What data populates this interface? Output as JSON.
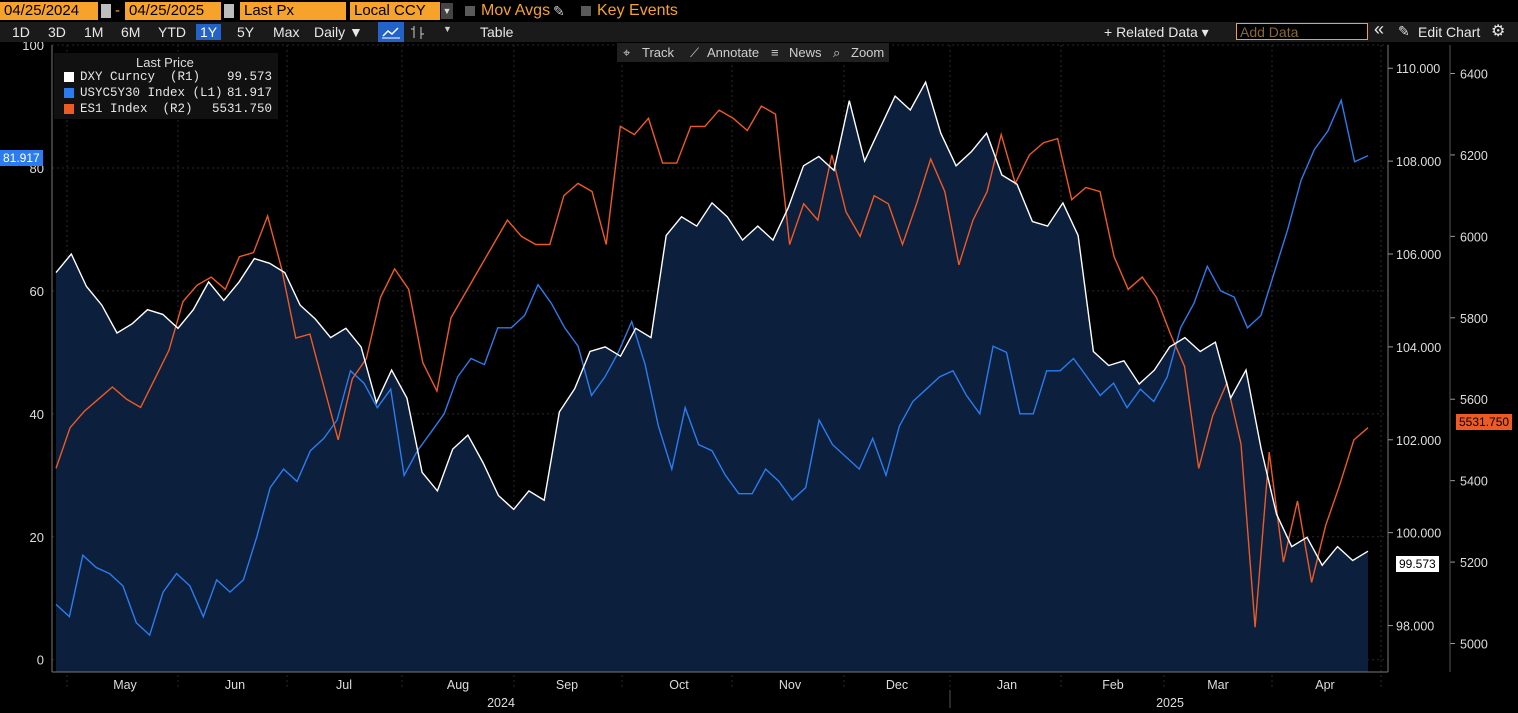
{
  "toolbar": {
    "start_date": "04/25/2024",
    "end_date": "04/25/2025",
    "dash": "-",
    "field": "Last Px",
    "currency": "Local CCY",
    "mov_avgs": "Mov Avgs",
    "key_events": "Key Events",
    "periods": [
      "1D",
      "3D",
      "1M",
      "6M",
      "YTD",
      "1Y",
      "5Y",
      "Max"
    ],
    "active_period": "1Y",
    "frequency": "Daily ▼",
    "table_label": "Table",
    "related_data": "+ Related Data ▾",
    "add_data_placeholder": "Add Data",
    "collapse": "«",
    "edit_chart": "Edit Chart",
    "gear": "⚙",
    "tools": [
      "Track",
      "Annotate",
      "News",
      "Zoom"
    ]
  },
  "legend": {
    "title": "Last Price",
    "rows": [
      {
        "label": "DXY Curncy  (R1)",
        "value": "99.573"
      },
      {
        "label": "USYC5Y30 Index (L1)",
        "value": "81.917"
      },
      {
        "label": "ES1 Index  (R2)",
        "value": "5531.750"
      }
    ]
  },
  "colors": {
    "dxy": "#ffffff",
    "usyc": "#2a7cf0",
    "es1": "#ee5a24",
    "area": "#0c1f3c",
    "orange": "#f7a32b"
  },
  "chart_data": {
    "type": "line",
    "x_ticks": [
      "May",
      "Jun",
      "Jul",
      "Aug",
      "Sep",
      "Oct",
      "Nov",
      "Dec",
      "Jan",
      "Feb",
      "Mar",
      "Apr"
    ],
    "year_labels": [
      "2024",
      "2025"
    ],
    "axes": {
      "L1": {
        "min": -2,
        "max": 100,
        "ticks": [
          "0",
          "20",
          "40",
          "60",
          "80",
          "100"
        ]
      },
      "R1": {
        "min": 97,
        "max": 110.5,
        "ticks": [
          "98.000",
          "100.000",
          "102.000",
          "104.000",
          "106.000",
          "108.000",
          "110.000"
        ]
      },
      "R2": {
        "min": 4930,
        "max": 6470,
        "ticks": [
          "5000",
          "5200",
          "5400",
          "5600",
          "5800",
          "6000",
          "6200",
          "6400"
        ]
      }
    },
    "series": [
      {
        "name": "DXY Curncy",
        "axis": "R1",
        "last": "99.573",
        "values": [
          105.6,
          106.0,
          105.3,
          104.9,
          104.3,
          104.5,
          104.8,
          104.7,
          104.4,
          104.8,
          105.4,
          105.0,
          105.4,
          105.9,
          105.8,
          105.6,
          104.9,
          104.6,
          104.2,
          104.4,
          104.0,
          102.8,
          103.5,
          102.9,
          101.3,
          100.9,
          101.8,
          102.1,
          101.5,
          100.8,
          100.5,
          100.9,
          100.7,
          102.6,
          103.1,
          103.9,
          104.0,
          103.8,
          104.4,
          104.2,
          106.4,
          106.8,
          106.6,
          107.1,
          106.8,
          106.3,
          106.6,
          106.3,
          107.0,
          107.9,
          108.1,
          107.8,
          109.3,
          108.0,
          108.7,
          109.4,
          109.1,
          109.7,
          108.6,
          107.9,
          108.2,
          108.6,
          107.7,
          107.5,
          106.7,
          106.6,
          107.1,
          106.4,
          103.9,
          103.6,
          103.7,
          103.2,
          103.5,
          104.0,
          104.2,
          103.9,
          104.1,
          102.9,
          103.5,
          101.8,
          100.4,
          99.7,
          99.9,
          99.3,
          99.7,
          99.4,
          99.6
        ],
        "color": "#ffffff"
      },
      {
        "name": "USYC5Y30 Index",
        "axis": "L1",
        "last": "81.917",
        "values": [
          9,
          7,
          17,
          15,
          14,
          12,
          6,
          4,
          11,
          14,
          12,
          7,
          13,
          11,
          13,
          20,
          28,
          31,
          29,
          34,
          36,
          39,
          47,
          45,
          41,
          44,
          30,
          34,
          37,
          40,
          46,
          49,
          48,
          54,
          54,
          56,
          61,
          58,
          54,
          51,
          43,
          46,
          50,
          55,
          48,
          38,
          31,
          41,
          35,
          34,
          30,
          27,
          27,
          31,
          29,
          26,
          28,
          39,
          35,
          33,
          31,
          36,
          30,
          38,
          42,
          44,
          46,
          47,
          43,
          40,
          51,
          50,
          40,
          40,
          47,
          47,
          49,
          46,
          43,
          45,
          41,
          44,
          42,
          46,
          54,
          58,
          64,
          60,
          59,
          54,
          56,
          63,
          70,
          78,
          83,
          86,
          91,
          81,
          82
        ],
        "color": "#2a7cf0"
      },
      {
        "name": "ES1 Index",
        "axis": "R2",
        "last": "5531.750",
        "values": [
          5430,
          5530,
          5570,
          5600,
          5630,
          5600,
          5580,
          5650,
          5720,
          5840,
          5880,
          5900,
          5870,
          5950,
          5960,
          6050,
          5920,
          5750,
          5760,
          5630,
          5500,
          5650,
          5700,
          5850,
          5920,
          5870,
          5690,
          5620,
          5800,
          5860,
          5920,
          5980,
          6040,
          6000,
          5980,
          5980,
          6100,
          6130,
          6110,
          5980,
          6270,
          6250,
          6290,
          6180,
          6180,
          6270,
          6270,
          6310,
          6290,
          6260,
          6320,
          6300,
          5980,
          6080,
          6040,
          6200,
          6060,
          6000,
          6100,
          6080,
          5980,
          6080,
          6190,
          6110,
          5930,
          6040,
          6110,
          6250,
          6130,
          6200,
          6230,
          6240,
          6090,
          6120,
          6110,
          5950,
          5870,
          5900,
          5850,
          5760,
          5680,
          5430,
          5560,
          5640,
          5490,
          5040,
          5470,
          5200,
          5350,
          5150,
          5290,
          5390,
          5500,
          5530
        ],
        "color": "#ee5a24"
      }
    ]
  }
}
